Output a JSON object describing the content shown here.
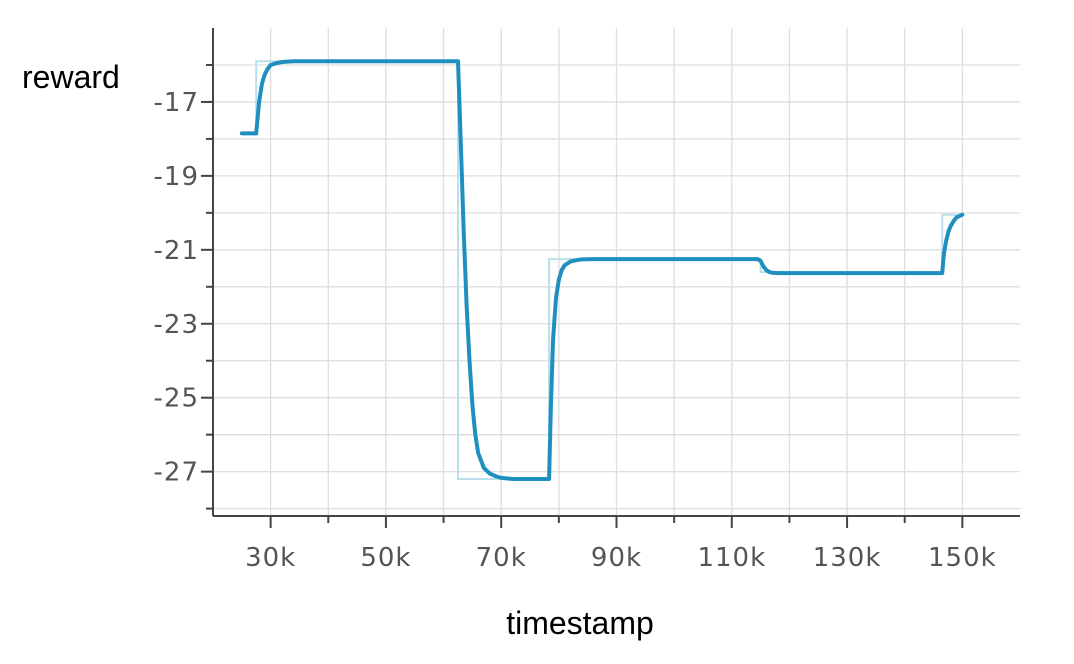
{
  "chart_data": {
    "type": "line",
    "title": "",
    "xlabel": "timestamp",
    "ylabel": "reward",
    "xlim": [
      20000,
      160000
    ],
    "ylim": [
      -28.2,
      -15
    ],
    "x_ticks": [
      30000,
      50000,
      70000,
      90000,
      110000,
      130000,
      150000
    ],
    "x_tick_labels": [
      "30k",
      "50k",
      "70k",
      "90k",
      "110k",
      "130k",
      "150k"
    ],
    "y_ticks": [
      -17,
      -19,
      -21,
      -23,
      -25,
      -27
    ],
    "y_tick_labels": [
      "-17",
      "-19",
      "-21",
      "-23",
      "-25",
      "-27"
    ],
    "grid": true,
    "legend": "none",
    "series": [
      {
        "line_color": "#1f8fc0",
        "raw_color": "#b9dfec",
        "raw": {
          "x": [
            25000,
            27500,
            27500,
            62500,
            62500,
            78300,
            78300,
            115000,
            115000,
            146500,
            146500,
            150000
          ],
          "y": [
            -17.85,
            -17.85,
            -15.9,
            -15.9,
            -27.2,
            -27.2,
            -21.25,
            -21.25,
            -21.6,
            -21.6,
            -20.05,
            -20.05
          ]
        },
        "smoothed": {
          "x": [
            25000,
            27000,
            27500,
            28000,
            28500,
            29000,
            29500,
            30000,
            31000,
            32000,
            34000,
            40000,
            50000,
            60000,
            62500,
            63000,
            63500,
            64000,
            64500,
            65000,
            65500,
            66000,
            67000,
            68000,
            69000,
            70000,
            72000,
            75000,
            78300,
            78600,
            79000,
            79500,
            80000,
            80500,
            81000,
            82000,
            83000,
            84000,
            86000,
            90000,
            100000,
            110000,
            114500,
            115000,
            115500,
            116000,
            116500,
            117000,
            118000,
            120000,
            130000,
            140000,
            146500,
            146800,
            147200,
            147600,
            148000,
            148500,
            149000,
            150000
          ],
          "y": [
            -17.85,
            -17.85,
            -17.85,
            -17.0,
            -16.5,
            -16.25,
            -16.1,
            -16.0,
            -15.95,
            -15.92,
            -15.9,
            -15.9,
            -15.9,
            -15.9,
            -15.9,
            -18.2,
            -20.5,
            -22.5,
            -24.0,
            -25.2,
            -26.0,
            -26.5,
            -26.9,
            -27.05,
            -27.12,
            -27.17,
            -27.2,
            -27.2,
            -27.2,
            -25.3,
            -23.4,
            -22.3,
            -21.8,
            -21.55,
            -21.42,
            -21.32,
            -21.28,
            -21.26,
            -21.25,
            -21.25,
            -21.25,
            -21.25,
            -21.25,
            -21.3,
            -21.45,
            -21.55,
            -21.6,
            -21.62,
            -21.63,
            -21.63,
            -21.63,
            -21.63,
            -21.63,
            -21.1,
            -20.75,
            -20.5,
            -20.35,
            -20.22,
            -20.12,
            -20.05
          ]
        }
      }
    ]
  }
}
